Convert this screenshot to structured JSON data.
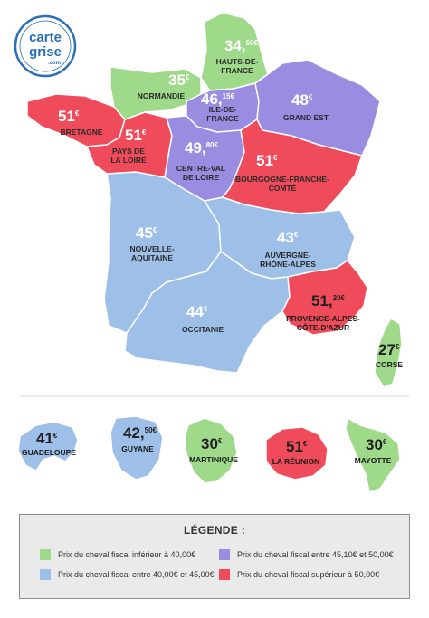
{
  "logo": {
    "line1": "carte",
    "line2": "grise",
    "line3": ".com"
  },
  "colors": {
    "green": "#9fd98a",
    "blue": "#9dbfe8",
    "purple": "#9a8ce0",
    "red": "#ef4b5a"
  },
  "regions": [
    {
      "key": "hauts_de_france",
      "name_lines": [
        "HAUTS-DE-",
        "FRANCE"
      ],
      "price_main": "34,",
      "price_sup": "50€",
      "color": "green"
    },
    {
      "key": "normandie",
      "name_lines": [
        "NORMANDIE"
      ],
      "price_main": "35",
      "price_sup": "€",
      "color": "green"
    },
    {
      "key": "ile_de_france",
      "name_lines": [
        "ILE-DE-",
        "FRANCE"
      ],
      "price_main": "46,",
      "price_sup": "15€",
      "color": "purple"
    },
    {
      "key": "grand_est",
      "name_lines": [
        "GRAND EST"
      ],
      "price_main": "48",
      "price_sup": "€",
      "color": "purple"
    },
    {
      "key": "bretagne",
      "name_lines": [
        "BRETAGNE"
      ],
      "price_main": "51",
      "price_sup": "€",
      "color": "red"
    },
    {
      "key": "pays_de_la_loire",
      "name_lines": [
        "PAYS DE",
        "LA LOIRE"
      ],
      "price_main": "51",
      "price_sup": "€",
      "color": "red"
    },
    {
      "key": "centre_val_de_loire",
      "name_lines": [
        "CENTRE-VAL",
        "DE LOIRE"
      ],
      "price_main": "49,",
      "price_sup": "80€",
      "color": "purple"
    },
    {
      "key": "bourgogne_franche_comte",
      "name_lines": [
        "BOURGOGNE-FRANCHE-",
        "COMTÉ"
      ],
      "price_main": "51",
      "price_sup": "€",
      "color": "red"
    },
    {
      "key": "nouvelle_aquitaine",
      "name_lines": [
        "NOUVELLE-",
        "AQUITAINE"
      ],
      "price_main": "45",
      "price_sup": "€",
      "color": "blue"
    },
    {
      "key": "auvergne_rhone_alpes",
      "name_lines": [
        "AUVERGNE-",
        "RHÔNE-ALPES"
      ],
      "price_main": "43",
      "price_sup": "€",
      "color": "blue"
    },
    {
      "key": "occitanie",
      "name_lines": [
        "OCCITANIE"
      ],
      "price_main": "44",
      "price_sup": "€",
      "color": "blue"
    },
    {
      "key": "provence_alpes_cote_d_azur",
      "name_lines": [
        "PROVENCE-ALPES-",
        "CÔTE-D'AZUR"
      ],
      "price_main": "51,",
      "price_sup": "20€",
      "color": "red"
    },
    {
      "key": "corse",
      "name_lines": [
        "CORSE"
      ],
      "price_main": "27",
      "price_sup": "€",
      "color": "green"
    }
  ],
  "overseas": [
    {
      "key": "guadeloupe",
      "name_lines": [
        "GUADELOUPE"
      ],
      "price_main": "41",
      "price_sup": "€",
      "color": "blue"
    },
    {
      "key": "guyane",
      "name_lines": [
        "GUYANE"
      ],
      "price_main": "42,",
      "price_sup": "50€",
      "color": "blue"
    },
    {
      "key": "martinique",
      "name_lines": [
        "MARTINIQUE"
      ],
      "price_main": "30",
      "price_sup": "€",
      "color": "green"
    },
    {
      "key": "la_reunion",
      "name_lines": [
        "LA RÉUNION"
      ],
      "price_main": "51",
      "price_sup": "€",
      "color": "red"
    },
    {
      "key": "mayotte",
      "name_lines": [
        "MAYOTTE"
      ],
      "price_main": "30",
      "price_sup": "€",
      "color": "green"
    }
  ],
  "legend": {
    "title": "LÉGENDE :",
    "items": [
      {
        "color": "green",
        "label": "Prix du cheval fiscal inférieur à 40,00€"
      },
      {
        "color": "purple",
        "label": "Prix du cheval fiscal entre 45,10€ et 50,00€"
      },
      {
        "color": "blue",
        "label": "Prix du cheval fiscal entre 40,00€ et 45,00€"
      },
      {
        "color": "red",
        "label": "Prix du cheval fiscal supérieur à 50,00€"
      }
    ]
  }
}
